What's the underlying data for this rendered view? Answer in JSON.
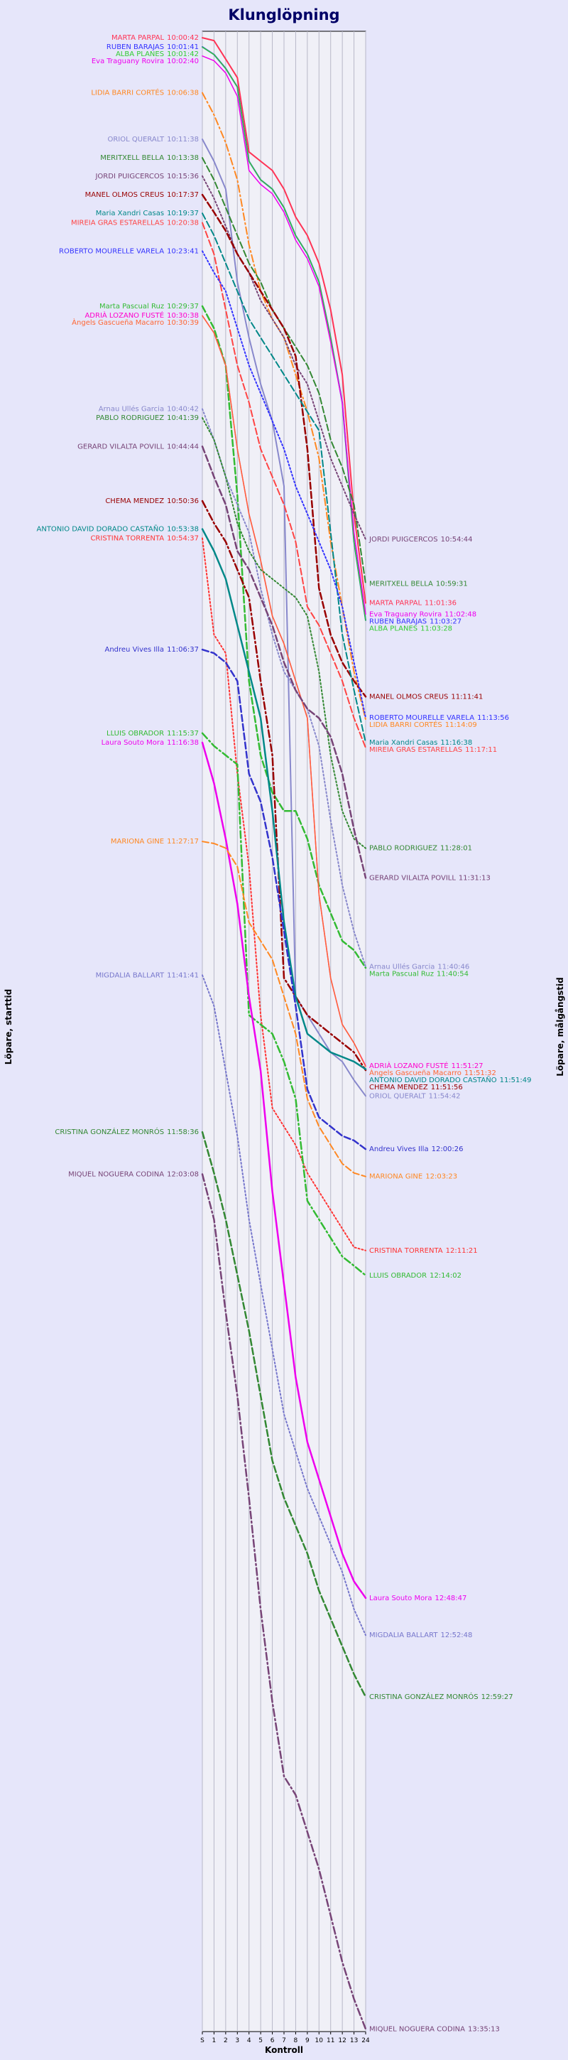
{
  "chart_data": {
    "type": "line",
    "title": "Klunglöpning",
    "xlabel": "Kontroll",
    "ylabel_left": "Löpare, starttid",
    "ylabel_right": "Löpare, målgångstid",
    "x_ticks": [
      {
        "label": "S",
        "pos": 0
      },
      {
        "label": "1",
        "pos": 1
      },
      {
        "label": "2",
        "pos": 2
      },
      {
        "label": "3",
        "pos": 3
      },
      {
        "label": "4",
        "pos": 4
      },
      {
        "label": "5",
        "pos": 5
      },
      {
        "label": "6",
        "pos": 6
      },
      {
        "label": "7",
        "pos": 7
      },
      {
        "label": "8",
        "pos": 8
      },
      {
        "label": "9",
        "pos": 9
      },
      {
        "label": "10",
        "pos": 10
      },
      {
        "label": "11",
        "pos": 11
      },
      {
        "label": "12",
        "pos": 12
      },
      {
        "label": "13",
        "pos": 13
      },
      {
        "label": "24",
        "pos": 14
      }
    ],
    "x_range": [
      0,
      14
    ],
    "time_range": [
      "10:00:00",
      "13:35:30"
    ],
    "grid": true,
    "series": [
      {
        "name": "MARTA PARPAL",
        "start": "10:00:42",
        "finish": "11:01:36",
        "color": "#ff3355",
        "dash": "solid",
        "width": 2,
        "y": [
          "10:00:42",
          "10:01:00",
          "10:03:00",
          "10:05:00",
          "10:13:00",
          "10:14:00",
          "10:15:00",
          "10:17:00",
          "10:20:00",
          "10:22:00",
          "10:25:00",
          "10:30:00",
          "10:37:00",
          "10:52:00",
          "11:01:36"
        ]
      },
      {
        "name": "RUBEN BARAJAS",
        "start": "10:01:41",
        "finish": "11:03:27",
        "color": "#3333ff",
        "dash": "solid",
        "width": 2,
        "y": [
          "10:01:41",
          "10:02:30",
          "10:04:00",
          "10:06:00",
          "10:14:00",
          "10:16:00",
          "10:17:00",
          "10:19:00",
          "10:22:00",
          "10:24:00",
          "10:27:00",
          "10:33:00",
          "10:40:00",
          "10:55:00",
          "11:03:27"
        ]
      },
      {
        "name": "ALBA PLANES",
        "start": "10:01:42",
        "finish": "11:03:28",
        "color": "#33cc33",
        "dash": "solid",
        "width": 1.5,
        "y": [
          "10:01:42",
          "10:02:30",
          "10:04:00",
          "10:06:00",
          "10:14:00",
          "10:16:00",
          "10:17:00",
          "10:19:00",
          "10:22:00",
          "10:24:00",
          "10:27:00",
          "10:33:00",
          "10:40:00",
          "10:55:00",
          "11:03:28"
        ]
      },
      {
        "name": "Eva Traguany Rovira",
        "start": "10:02:40",
        "finish": "11:02:48",
        "color": "#ee00ee",
        "dash": "solid",
        "width": 1.5,
        "y": [
          "10:02:40",
          "10:03:10",
          "10:04:30",
          "10:07:00",
          "10:15:00",
          "10:16:30",
          "10:17:30",
          "10:19:30",
          "10:22:30",
          "10:24:30",
          "10:27:30",
          "10:33:30",
          "10:40:00",
          "10:54:00",
          "11:02:48"
        ]
      },
      {
        "name": "LIDIA BARRI CORTÉS",
        "start": "10:06:38",
        "finish": "11:14:09",
        "color": "#ff8822",
        "dash": "dashdot",
        "width": 2,
        "y": [
          "10:06:38",
          "10:09:00",
          "10:12:00",
          "10:16:00",
          "10:23:00",
          "10:28:00",
          "10:31:00",
          "10:33:00",
          "10:37:00",
          "10:41:00",
          "10:46:00",
          "10:55:00",
          "11:02:00",
          "11:09:00",
          "11:14:09"
        ]
      },
      {
        "name": "ORIOL QUERALT",
        "start": "10:11:38",
        "finish": "11:54:42",
        "color": "#8888cc",
        "dash": "solid",
        "width": 2,
        "y": [
          "10:11:38",
          "10:14:00",
          "10:17:00",
          "10:27:00",
          "10:33:00",
          "10:38:00",
          "10:42:00",
          "10:49:00",
          "11:44:00",
          "11:46:00",
          "11:48:00",
          "11:50:00",
          "11:51:00",
          "11:53:00",
          "11:54:42"
        ]
      },
      {
        "name": "MERITXELL BELLA",
        "start": "10:13:38",
        "finish": "10:59:31",
        "color": "#338833",
        "dash": "dashed",
        "width": 2,
        "y": [
          "10:13:38",
          "10:16:00",
          "10:19:00",
          "10:22:00",
          "10:25:00",
          "10:27:00",
          "10:30:00",
          "10:32:00",
          "10:34:00",
          "10:36:00",
          "10:39:00",
          "10:44:00",
          "10:47:00",
          "10:51:00",
          "10:59:31"
        ]
      },
      {
        "name": "JORDI PUIGCERCOS",
        "start": "10:15:36",
        "finish": "10:54:44",
        "color": "#774477",
        "dash": "dotted",
        "width": 2,
        "y": [
          "10:15:36",
          "10:18:00",
          "10:21:00",
          "10:24:00",
          "10:26:00",
          "10:29:00",
          "10:31:00",
          "10:33:00",
          "10:36:00",
          "10:38:00",
          "10:42:00",
          "10:46:00",
          "10:49:00",
          "10:52:00",
          "10:54:44"
        ]
      },
      {
        "name": "MANEL OLMOS CREUS",
        "start": "10:17:37",
        "finish": "11:11:41",
        "color": "#990000",
        "dash": "dashed",
        "width": 2.5,
        "y": [
          "10:17:37",
          "10:19:30",
          "10:21:30",
          "10:24:00",
          "10:26:00",
          "10:28:00",
          "10:30:00",
          "10:32:00",
          "10:35:00",
          "10:45:00",
          "11:00:00",
          "11:05:00",
          "11:08:00",
          "11:10:00",
          "11:11:41"
        ]
      },
      {
        "name": "Maria Xandri Casas",
        "start": "10:19:37",
        "finish": "11:16:38",
        "color": "#008888",
        "dash": "dashed",
        "width": 2,
        "y": [
          "10:19:37",
          "10:22:00",
          "10:25:00",
          "10:28:00",
          "10:31:00",
          "10:33:00",
          "10:35:00",
          "10:37:00",
          "10:39:00",
          "10:41:00",
          "10:43:00",
          "10:54:00",
          "11:05:00",
          "11:11:00",
          "11:16:38"
        ]
      },
      {
        "name": "MIREIA GRAS ESTARELLAS",
        "start": "10:20:38",
        "finish": "11:17:11",
        "color": "#ff4444",
        "dash": "dashed",
        "width": 2,
        "y": [
          "10:20:38",
          "10:24:00",
          "10:30:00",
          "10:36:00",
          "10:40:00",
          "10:45:00",
          "10:48:00",
          "10:51:00",
          "10:55:00",
          "11:02:00",
          "11:04:00",
          "11:07:00",
          "11:10:00",
          "11:14:00",
          "11:17:11"
        ]
      },
      {
        "name": "ROBERTO MOURELLE VARELA",
        "start": "10:23:41",
        "finish": "11:13:56",
        "color": "#3333ff",
        "dash": "dotted",
        "width": 2,
        "y": [
          "10:23:41",
          "10:26:00",
          "10:28:00",
          "10:32:00",
          "10:36:00",
          "10:39:00",
          "10:42:00",
          "10:45:00",
          "10:49:00",
          "10:52:00",
          "10:55:00",
          "10:58:00",
          "11:02:00",
          "11:08:00",
          "11:13:56"
        ]
      },
      {
        "name": "Marta Pascual Ruz",
        "start": "10:29:37",
        "finish": "11:40:54",
        "color": "#33bb33",
        "dash": "dashed",
        "width": 2.5,
        "y": [
          "10:29:37",
          "10:32:00",
          "10:36:00",
          "10:50:00",
          "11:10:00",
          "11:18:00",
          "11:22:00",
          "11:24:00",
          "11:24:00",
          "11:27:00",
          "11:32:00",
          "11:35:00",
          "11:38:00",
          "11:39:00",
          "11:40:54"
        ]
      },
      {
        "name": "ADRIÀ LOZANO FUSTÉ",
        "start": "10:30:38",
        "finish": "11:51:27",
        "color": "#ff00cc",
        "dash": "solid",
        "width": 1.5,
        "y": [
          "10:30:38",
          "10:32:30",
          "10:36:00",
          "10:45:00",
          "10:52:00",
          "10:57:00",
          "11:03:00",
          "11:06:00",
          "11:10:00",
          "11:14:00",
          "11:33:00",
          "11:42:00",
          "11:47:00",
          "11:49:00",
          "11:51:27"
        ]
      },
      {
        "name": "Àngels Gascueña Macarro",
        "start": "10:30:39",
        "finish": "11:51:32",
        "color": "#ff6633",
        "dash": "solid",
        "width": 1.5,
        "y": [
          "10:30:39",
          "10:32:30",
          "10:36:00",
          "10:45:00",
          "10:52:00",
          "10:57:00",
          "11:03:00",
          "11:06:00",
          "11:10:00",
          "11:14:00",
          "11:33:00",
          "11:42:00",
          "11:47:00",
          "11:49:00",
          "11:51:32"
        ]
      },
      {
        "name": "Arnau Ullés Garcia",
        "start": "10:40:42",
        "finish": "11:40:46",
        "color": "#8888cc",
        "dash": "dotted",
        "width": 2,
        "y": [
          "10:40:42",
          "10:44:00",
          "10:48:00",
          "10:51:00",
          "10:54:00",
          "11:00:00",
          "11:05:00",
          "11:09:00",
          "11:11:00",
          "11:13:00",
          "11:17:00",
          "11:25:00",
          "11:32:00",
          "11:37:00",
          "11:40:46"
        ]
      },
      {
        "name": "PABLO RODRIGUEZ",
        "start": "10:41:39",
        "finish": "11:28:01",
        "color": "#338833",
        "dash": "dotted",
        "width": 2,
        "y": [
          "10:41:39",
          "10:44:00",
          "10:48:00",
          "10:53:00",
          "10:56:00",
          "10:58:00",
          "10:59:00",
          "11:00:00",
          "11:01:00",
          "11:03:00",
          "11:09:00",
          "11:18:00",
          "11:24:00",
          "11:27:00",
          "11:28:01"
        ]
      },
      {
        "name": "GERARD VILALTA POVILL",
        "start": "10:44:44",
        "finish": "11:31:13",
        "color": "#774477",
        "dash": "dashed",
        "width": 2.5,
        "y": [
          "10:44:44",
          "10:48:00",
          "10:51:00",
          "10:56:00",
          "10:58:00",
          "11:01:00",
          "11:04:00",
          "11:08:00",
          "11:11:00",
          "11:13:00",
          "11:14:00",
          "11:16:00",
          "11:20:00",
          "11:26:00",
          "11:31:13"
        ]
      },
      {
        "name": "CHEMA MENDEZ",
        "start": "10:50:36",
        "finish": "11:51:56",
        "color": "#990000",
        "dash": "dashdot",
        "width": 2.5,
        "y": [
          "10:50:36",
          "10:53:00",
          "10:55:00",
          "10:58:00",
          "11:01:00",
          "11:10:00",
          "11:18:00",
          "11:42:00",
          "11:44:00",
          "11:46:00",
          "11:47:00",
          "11:48:00",
          "11:49:00",
          "11:50:00",
          "11:51:56"
        ]
      },
      {
        "name": "ANTONIO DAVID DORADO CASTAÑO",
        "start": "10:53:38",
        "finish": "11:51:49",
        "color": "#008888",
        "dash": "solid",
        "width": 2.5,
        "y": [
          "10:53:38",
          "10:56:00",
          "10:59:00",
          "11:04:00",
          "11:09:00",
          "11:14:00",
          "11:24:00",
          "11:36:00",
          "11:44:00",
          "11:48:00",
          "11:49:00",
          "11:50:00",
          "11:50:30",
          "11:51:00",
          "11:51:49"
        ]
      },
      {
        "name": "CRISTINA TORRENTA",
        "start": "10:54:37",
        "finish": "12:11:21",
        "color": "#ff3333",
        "dash": "dotted",
        "width": 2,
        "y": [
          "10:54:37",
          "11:05:00",
          "11:07:00",
          "11:20:00",
          "11:30:00",
          "11:46:00",
          "11:56:00",
          "11:58:00",
          "12:00:00",
          "12:03:00",
          "12:05:00",
          "12:07:00",
          "12:09:00",
          "12:11:00",
          "12:11:21"
        ]
      },
      {
        "name": "Andreu Vives Illa",
        "start": "11:06:37",
        "finish": "12:00:26",
        "color": "#3333cc",
        "dash": "dashed",
        "width": 2.5,
        "y": [
          "11:06:37",
          "11:07:00",
          "11:08:00",
          "11:10:00",
          "11:20:00",
          "11:23:00",
          "11:29:00",
          "11:37:00",
          "11:45:00",
          "11:54:00",
          "11:57:00",
          "11:58:00",
          "11:59:00",
          "11:59:30",
          "12:00:26"
        ]
      },
      {
        "name": "LLUIS OBRADOR",
        "start": "11:15:37",
        "finish": "12:14:02",
        "color": "#33bb33",
        "dash": "dashdot",
        "width": 2.5,
        "y": [
          "11:15:37",
          "11:17:00",
          "11:18:00",
          "11:19:00",
          "11:46:00",
          "11:47:00",
          "11:48:00",
          "11:51:00",
          "11:55:00",
          "12:06:00",
          "12:08:00",
          "12:10:00",
          "12:12:00",
          "12:13:00",
          "12:14:02"
        ]
      },
      {
        "name": "Laura Souto Mora",
        "start": "11:16:38",
        "finish": "12:48:47",
        "color": "#ee00ee",
        "dash": "solid",
        "width": 2.5,
        "y": [
          "11:16:38",
          "11:21:00",
          "11:27:00",
          "11:34:00",
          "11:44:00",
          "11:52:00",
          "12:05:00",
          "12:15:00",
          "12:25:00",
          "12:32:00",
          "12:36:00",
          "12:40:00",
          "12:44:00",
          "12:47:00",
          "12:48:47"
        ]
      },
      {
        "name": "MARIONA GINE",
        "start": "11:27:17",
        "finish": "12:03:23",
        "color": "#ff8822",
        "dash": "dashed",
        "width": 2,
        "y": [
          "11:27:17",
          "11:27:30",
          "11:28:00",
          "11:30:00",
          "11:36:00",
          "11:38:00",
          "11:40:00",
          "11:44:00",
          "11:48:00",
          "11:55:00",
          "11:58:00",
          "12:00:00",
          "12:02:00",
          "12:03:00",
          "12:03:23"
        ]
      },
      {
        "name": "MIGDALIA BALLART",
        "start": "11:41:41",
        "finish": "12:52:48",
        "color": "#7777cc",
        "dash": "dotted",
        "width": 2,
        "y": [
          "11:41:41",
          "11:45:00",
          "11:52:00",
          "11:59:00",
          "12:08:00",
          "12:15:00",
          "12:22:00",
          "12:29:00",
          "12:33:00",
          "12:37:00",
          "12:40:00",
          "12:43:00",
          "12:46:00",
          "12:50:00",
          "12:52:48"
        ]
      },
      {
        "name": "CRISTINA GONZÁLEZ MONRÓS",
        "start": "11:58:36",
        "finish": "12:59:27",
        "color": "#338833",
        "dash": "dashed",
        "width": 2.5,
        "y": [
          "11:58:36",
          "12:03:00",
          "12:08:00",
          "12:14:00",
          "12:20:00",
          "12:27:00",
          "12:34:00",
          "12:38:00",
          "12:41:00",
          "12:44:00",
          "12:48:00",
          "12:51:00",
          "12:54:00",
          "12:57:00",
          "12:59:27"
        ]
      },
      {
        "name": "MIQUEL NOGUERA CODINA",
        "start": "12:03:08",
        "finish": "13:35:13",
        "color": "#774477",
        "dash": "dashdot",
        "width": 2.5,
        "y": [
          "12:03:08",
          "12:08:00",
          "12:18:00",
          "12:27:00",
          "12:38:00",
          "12:50:00",
          "13:00:00",
          "13:08:00",
          "13:10:00",
          "13:14:00",
          "13:18:00",
          "13:23:00",
          "13:28:00",
          "13:32:00",
          "13:35:13"
        ]
      }
    ]
  }
}
